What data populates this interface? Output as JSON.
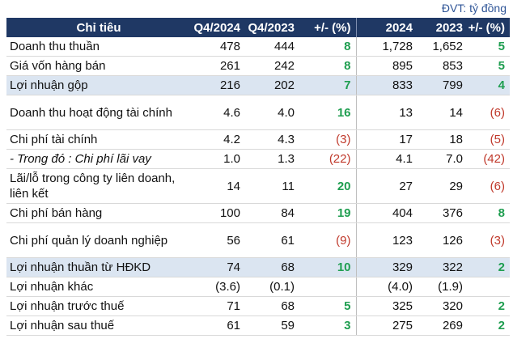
{
  "unit_note": "ĐVT: tỷ đồng",
  "columns": [
    "Chỉ tiêu",
    "Q4/2024",
    "Q4/2023",
    "+/- (%)",
    "2024",
    "2023",
    "+/- (%)"
  ],
  "rows": [
    {
      "name": "Doanh thu thuần",
      "q4_2024": "478",
      "q4_2023": "444",
      "chg_q": "8",
      "y2024": "1,728",
      "y2023": "1,652",
      "chg_y": "5"
    },
    {
      "name": "Giá vốn hàng bán",
      "q4_2024": "261",
      "q4_2023": "242",
      "chg_q": "8",
      "y2024": "895",
      "y2023": "853",
      "chg_y": "5"
    },
    {
      "name": "Lợi nhuận gộp",
      "q4_2024": "216",
      "q4_2023": "202",
      "chg_q": "7",
      "y2024": "833",
      "y2023": "799",
      "chg_y": "4"
    },
    {
      "name": "Doanh thu hoạt động tài chính",
      "q4_2024": "4.6",
      "q4_2023": "4.0",
      "chg_q": "16",
      "y2024": "13",
      "y2023": "14",
      "chg_y": "(6)"
    },
    {
      "name": "Chi phí tài chính",
      "q4_2024": "4.2",
      "q4_2023": "4.3",
      "chg_q": "(3)",
      "y2024": "17",
      "y2023": "18",
      "chg_y": "(5)"
    },
    {
      "name": "- Trong đó : Chi phí lãi vay",
      "q4_2024": "1.0",
      "q4_2023": "1.3",
      "chg_q": "(22)",
      "y2024": "4.1",
      "y2023": "7.0",
      "chg_y": "(42)"
    },
    {
      "name": "Lãi/lỗ trong công ty liên doanh, liên kết",
      "q4_2024": "14",
      "q4_2023": "11",
      "chg_q": "20",
      "y2024": "27",
      "y2023": "29",
      "chg_y": "(6)"
    },
    {
      "name": "Chi phí bán hàng",
      "q4_2024": "100",
      "q4_2023": "84",
      "chg_q": "19",
      "y2024": "404",
      "y2023": "376",
      "chg_y": "8"
    },
    {
      "name": "Chi phí quản lý doanh nghiệp",
      "q4_2024": "56",
      "q4_2023": "61",
      "chg_q": "(9)",
      "y2024": "123",
      "y2023": "126",
      "chg_y": "(3)"
    },
    {
      "name": "Lợi nhuận thuần từ HĐKD",
      "q4_2024": "74",
      "q4_2023": "68",
      "chg_q": "10",
      "y2024": "329",
      "y2023": "322",
      "chg_y": "2"
    },
    {
      "name": "Lợi nhuận khác",
      "q4_2024": "(3.6)",
      "q4_2023": "(0.1)",
      "chg_q": "",
      "y2024": "(4.0)",
      "y2023": "(1.9)",
      "chg_y": ""
    },
    {
      "name": "Lợi nhuận trước thuế",
      "q4_2024": "71",
      "q4_2023": "68",
      "chg_q": "5",
      "y2024": "325",
      "y2023": "320",
      "chg_y": "2"
    },
    {
      "name": "Lợi nhuận sau thuế",
      "q4_2024": "61",
      "q4_2023": "59",
      "chg_q": "3",
      "y2024": "275",
      "y2023": "269",
      "chg_y": "2"
    }
  ],
  "colors": {
    "header_bg": "#1f3864",
    "highlight_bg": "#dbe5f1",
    "positive": "#1f9e50",
    "negative": "#c0392b",
    "unit_text": "#2f5597"
  }
}
